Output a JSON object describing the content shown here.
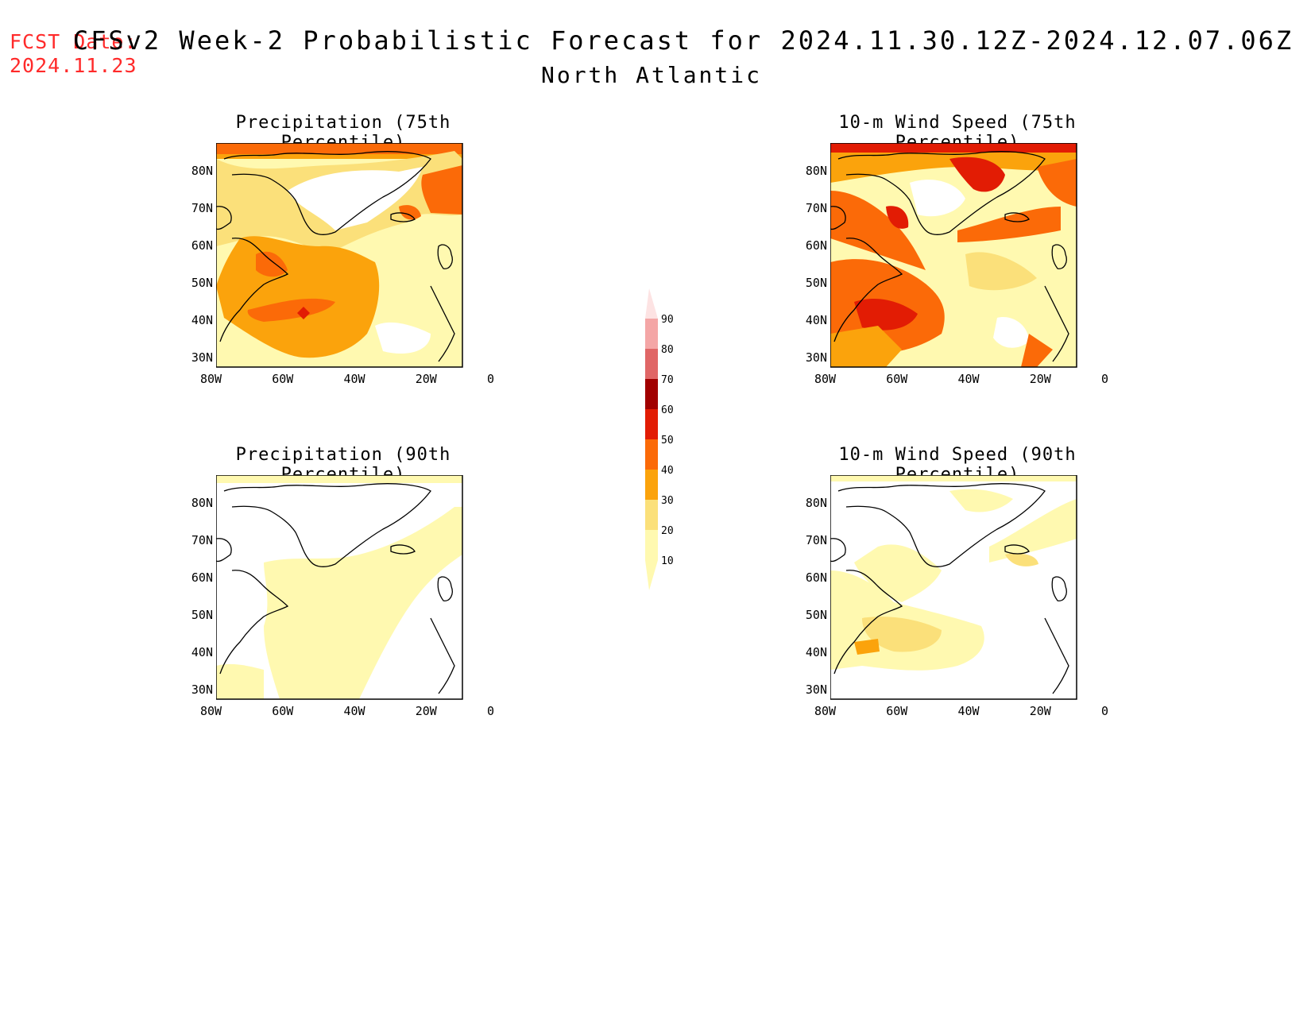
{
  "header": {
    "fcst_label": "FCST Date:",
    "fcst_date": "2024.11.23",
    "title": "CFSv2 Week-2 Probabilistic Forecast for 2024.11.30.12Z-2024.12.07.06Z",
    "region": "North Atlantic"
  },
  "panels": [
    {
      "title": "Precipitation (75th Percentile)",
      "intensity": "high"
    },
    {
      "title": "10-m Wind Speed (75th Percentile)",
      "intensity": "very-high"
    },
    {
      "title": "Precipitation (90th Percentile)",
      "intensity": "low"
    },
    {
      "title": "10-m Wind Speed (90th Percentile)",
      "intensity": "low-mid"
    }
  ],
  "axes": {
    "lat_labels": [
      "80N",
      "70N",
      "60N",
      "50N",
      "40N",
      "30N"
    ],
    "lon_labels": [
      "80W",
      "60W",
      "40W",
      "20W",
      "0"
    ]
  },
  "colorbar": {
    "levels": [
      "10",
      "20",
      "30",
      "40",
      "50",
      "60",
      "70",
      "80",
      "90"
    ],
    "colors": [
      "#fff9b0",
      "#fbe07a",
      "#fba30c",
      "#fb6a08",
      "#e21c04",
      "#a10000",
      "#e06666",
      "#f4a6a6",
      "#fde3e3"
    ]
  }
}
